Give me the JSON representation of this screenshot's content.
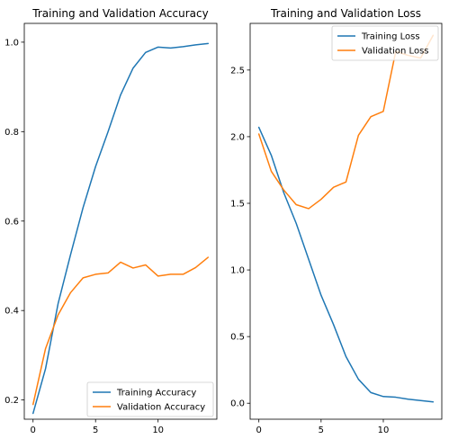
{
  "chart_data": [
    {
      "type": "line",
      "title": "Training and Validation Accuracy",
      "xlabel": "",
      "ylabel": "",
      "xlim": [
        -0.7,
        14.7
      ],
      "ylim": [
        0.157,
        1.042
      ],
      "x_ticks": [
        0,
        5,
        10
      ],
      "y_ticks": [
        0.2,
        0.4,
        0.6,
        0.8,
        1.0
      ],
      "y_tick_labels": [
        "0.2",
        "0.4",
        "0.6",
        "0.8",
        "1.0"
      ],
      "legend_position": "lower-right",
      "x": [
        0,
        1,
        2,
        3,
        4,
        5,
        6,
        7,
        8,
        9,
        10,
        11,
        12,
        13,
        14
      ],
      "series": [
        {
          "name": "Training Accuracy",
          "color": "#1f77b4",
          "values": [
            0.17,
            0.27,
            0.415,
            0.525,
            0.63,
            0.722,
            0.8,
            0.882,
            0.942,
            0.977,
            0.989,
            0.987,
            0.99,
            0.994,
            0.997
          ]
        },
        {
          "name": "Validation Accuracy",
          "color": "#ff7f0e",
          "values": [
            0.19,
            0.315,
            0.39,
            0.44,
            0.473,
            0.481,
            0.484,
            0.508,
            0.495,
            0.502,
            0.477,
            0.481,
            0.481,
            0.496,
            0.519
          ]
        }
      ]
    },
    {
      "type": "line",
      "title": "Training and Validation Loss",
      "xlabel": "",
      "ylabel": "",
      "xlim": [
        -0.7,
        14.7
      ],
      "ylim": [
        -0.12,
        2.85
      ],
      "x_ticks": [
        0,
        5,
        10
      ],
      "y_ticks": [
        0.0,
        0.5,
        1.0,
        1.5,
        2.0,
        2.5
      ],
      "y_tick_labels": [
        "0.0",
        "0.5",
        "1.0",
        "1.5",
        "2.0",
        "2.5"
      ],
      "legend_position": "upper-right",
      "x": [
        0,
        1,
        2,
        3,
        4,
        5,
        6,
        7,
        8,
        9,
        10,
        11,
        12,
        13,
        14
      ],
      "series": [
        {
          "name": "Training Loss",
          "color": "#1f77b4",
          "values": [
            2.07,
            1.86,
            1.58,
            1.35,
            1.08,
            0.81,
            0.59,
            0.35,
            0.18,
            0.08,
            0.05,
            0.045,
            0.03,
            0.02,
            0.01
          ]
        },
        {
          "name": "Validation Loss",
          "color": "#ff7f0e",
          "values": [
            2.02,
            1.74,
            1.6,
            1.49,
            1.46,
            1.53,
            1.62,
            1.66,
            2.01,
            2.15,
            2.19,
            2.64,
            2.61,
            2.59,
            2.76
          ]
        }
      ]
    }
  ]
}
